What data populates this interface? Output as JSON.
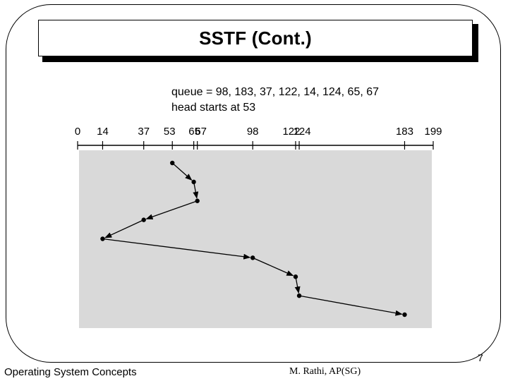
{
  "slide": {
    "title": "SSTF (Cont.)",
    "page_number": "7"
  },
  "figure": {
    "queue_text": "queue = 98, 183, 37, 122, 14, 124, 65, 67",
    "head_text": "head starts at 53",
    "axis_ticks": [
      {
        "value": 0,
        "label": "0"
      },
      {
        "value": 14,
        "label": "14"
      },
      {
        "value": 37,
        "label": "37"
      },
      {
        "value": 53,
        "label": "53"
      },
      {
        "value": 65,
        "label": "65"
      },
      {
        "value": 67,
        "label": "67"
      },
      {
        "value": 98,
        "label": "98"
      },
      {
        "value": 122,
        "label": "122"
      },
      {
        "value": 124,
        "label": "124"
      },
      {
        "value": 183,
        "label": "183"
      },
      {
        "value": 199,
        "label": "199"
      }
    ],
    "axis_range": [
      0,
      199
    ],
    "service_order": [
      53,
      65,
      67,
      37,
      14,
      98,
      122,
      124,
      183
    ],
    "panel_color": "#d9d9d9"
  },
  "footer": {
    "left_text": "Operating System Concepts",
    "center_text": "M. Rathi, AP(SG)"
  }
}
